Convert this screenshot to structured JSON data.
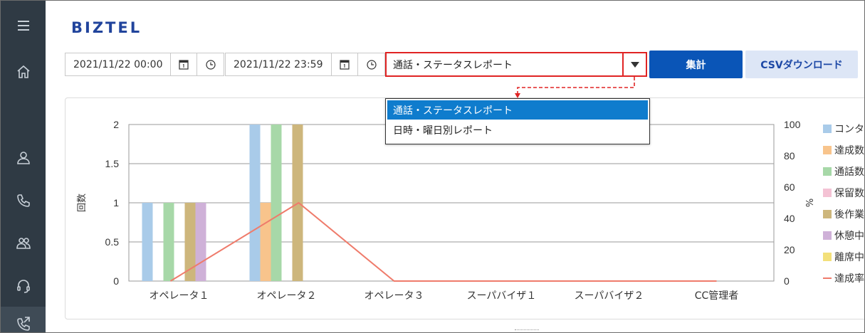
{
  "app": {
    "logo": "BIZTEL"
  },
  "sidebar": {
    "items": [
      {
        "name": "menu",
        "icon": "hamburger-icon"
      },
      {
        "name": "home",
        "icon": "home-icon"
      },
      {
        "name": "user",
        "icon": "user-icon"
      },
      {
        "name": "phone",
        "icon": "phone-icon"
      },
      {
        "name": "group",
        "icon": "group-icon"
      },
      {
        "name": "headset",
        "icon": "headset-icon"
      },
      {
        "name": "call-report",
        "icon": "phone-report-icon",
        "active": true
      }
    ]
  },
  "filters": {
    "start_datetime": "2021/11/22 00:00",
    "end_datetime": "2021/11/22 23:59",
    "report_type": "通話・ステータスレポート",
    "aggregate_label": "集計",
    "csv_label": "CSVダウンロード"
  },
  "dropdown": {
    "options": [
      "通話・ステータスレポート",
      "日時・曜日別レポート"
    ],
    "selected_index": 0
  },
  "colors": {
    "accent": "#0a55b7",
    "highlight": "#e02424",
    "selected_option": "#0f7ccd"
  },
  "chart_data": {
    "type": "bar",
    "ylabel": "回数",
    "y2label": "%",
    "ylim": [
      0,
      2
    ],
    "y2lim": [
      0,
      100
    ],
    "yticks": [
      "0",
      "0.5",
      "1",
      "1.5",
      "2"
    ],
    "y2ticks": [
      "0",
      "20",
      "40",
      "60",
      "80",
      "100"
    ],
    "categories": [
      "オペレータ１",
      "オペレータ２",
      "オペレータ３",
      "スーパバイザ１",
      "スーパバイザ２",
      "CC管理者"
    ],
    "series": [
      {
        "name": "コンタ",
        "color": "#a9cbe9",
        "values": [
          1,
          2,
          0,
          0,
          0,
          0
        ]
      },
      {
        "name": "達成数",
        "color": "#f8c48c",
        "values": [
          0,
          1,
          0,
          0,
          0,
          0
        ]
      },
      {
        "name": "通話数",
        "color": "#a7d8a8",
        "values": [
          1,
          2,
          0,
          0,
          0,
          0
        ]
      },
      {
        "name": "保留数",
        "color": "#f4c2d4",
        "values": [
          0,
          0,
          0,
          0,
          0,
          0
        ]
      },
      {
        "name": "後作業",
        "color": "#cdb67c",
        "values": [
          1,
          2,
          0,
          0,
          0,
          0
        ]
      },
      {
        "name": "休憩中",
        "color": "#cfb1d8",
        "values": [
          1,
          0,
          0,
          0,
          0,
          0
        ]
      },
      {
        "name": "離席中",
        "color": "#f3e07a",
        "values": [
          0,
          0,
          0,
          0,
          0,
          0
        ]
      }
    ],
    "line_series": {
      "name": "達成率",
      "color": "#ef7b6b",
      "values": [
        0,
        50,
        0,
        0,
        0,
        0
      ]
    },
    "grid": true,
    "legend": "right"
  }
}
